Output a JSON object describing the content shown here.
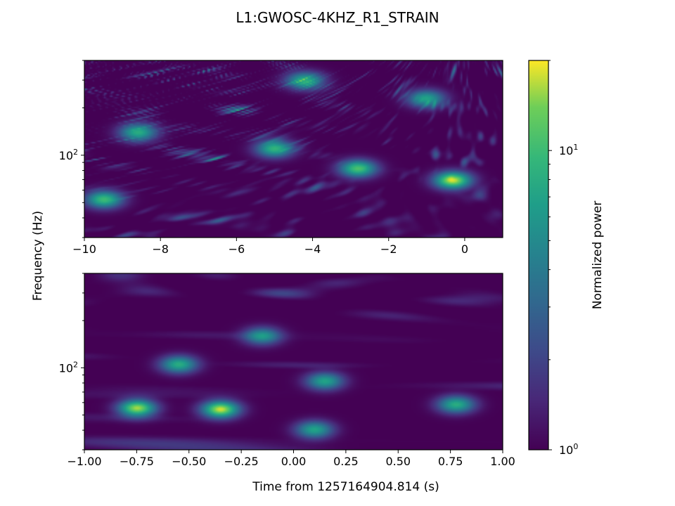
{
  "title": "L1:GWOSC-4KHZ_R1_STRAIN",
  "chart_data": [
    {
      "type": "heatmap",
      "panel": "top",
      "xlim": [
        -10,
        1
      ],
      "ylim": [
        30,
        400
      ],
      "yscale": "log",
      "xticks": [
        -10,
        -8,
        -6,
        -4,
        -2,
        0
      ],
      "xtick_labels": [
        "−10",
        "−8",
        "−6",
        "−4",
        "−2",
        "0"
      ],
      "ytick_major_labels": [
        {
          "base": "10",
          "exp": "2",
          "value": 100
        }
      ],
      "peaks": [
        {
          "t": -0.3,
          "f": 69,
          "power": 18
        },
        {
          "t": -2.8,
          "f": 82,
          "power": 11
        },
        {
          "t": -9.5,
          "f": 52,
          "power": 10
        },
        {
          "t": -5.0,
          "f": 110,
          "power": 9
        },
        {
          "t": -4.2,
          "f": 300,
          "power": 8
        },
        {
          "t": -8.6,
          "f": 140,
          "power": 8
        },
        {
          "t": -1.0,
          "f": 230,
          "power": 7
        }
      ]
    },
    {
      "type": "heatmap",
      "panel": "bottom",
      "xlim": [
        -1,
        1
      ],
      "ylim": [
        30,
        400
      ],
      "yscale": "log",
      "xticks": [
        -1.0,
        -0.75,
        -0.5,
        -0.25,
        0.0,
        0.25,
        0.5,
        0.75,
        1.0
      ],
      "xtick_labels": [
        "−1.00",
        "−0.75",
        "−0.50",
        "−0.25",
        "0.00",
        "0.25",
        "0.50",
        "0.75",
        "1.00"
      ],
      "ytick_major_labels": [
        {
          "base": "10",
          "exp": "2",
          "value": 100
        }
      ],
      "xlabel": "Time from 1257164904.814 (s)",
      "peaks": [
        {
          "t": -0.35,
          "f": 54,
          "power": 18
        },
        {
          "t": -0.75,
          "f": 55,
          "power": 16
        },
        {
          "t": 0.1,
          "f": 40,
          "power": 7
        },
        {
          "t": -0.55,
          "f": 105,
          "power": 8
        },
        {
          "t": 0.78,
          "f": 58,
          "power": 8
        },
        {
          "t": 0.15,
          "f": 82,
          "power": 7
        },
        {
          "t": -0.15,
          "f": 160,
          "power": 6
        }
      ]
    }
  ],
  "shared_ylabel": "Frequency (Hz)",
  "colorbar": {
    "label": "Normalized power",
    "scale": "log",
    "range": [
      1,
      20
    ],
    "colormap": "viridis",
    "tick_labels": [
      {
        "base": "10",
        "exp": "0",
        "value": 1
      },
      {
        "base": "10",
        "exp": "1",
        "value": 10
      }
    ]
  }
}
